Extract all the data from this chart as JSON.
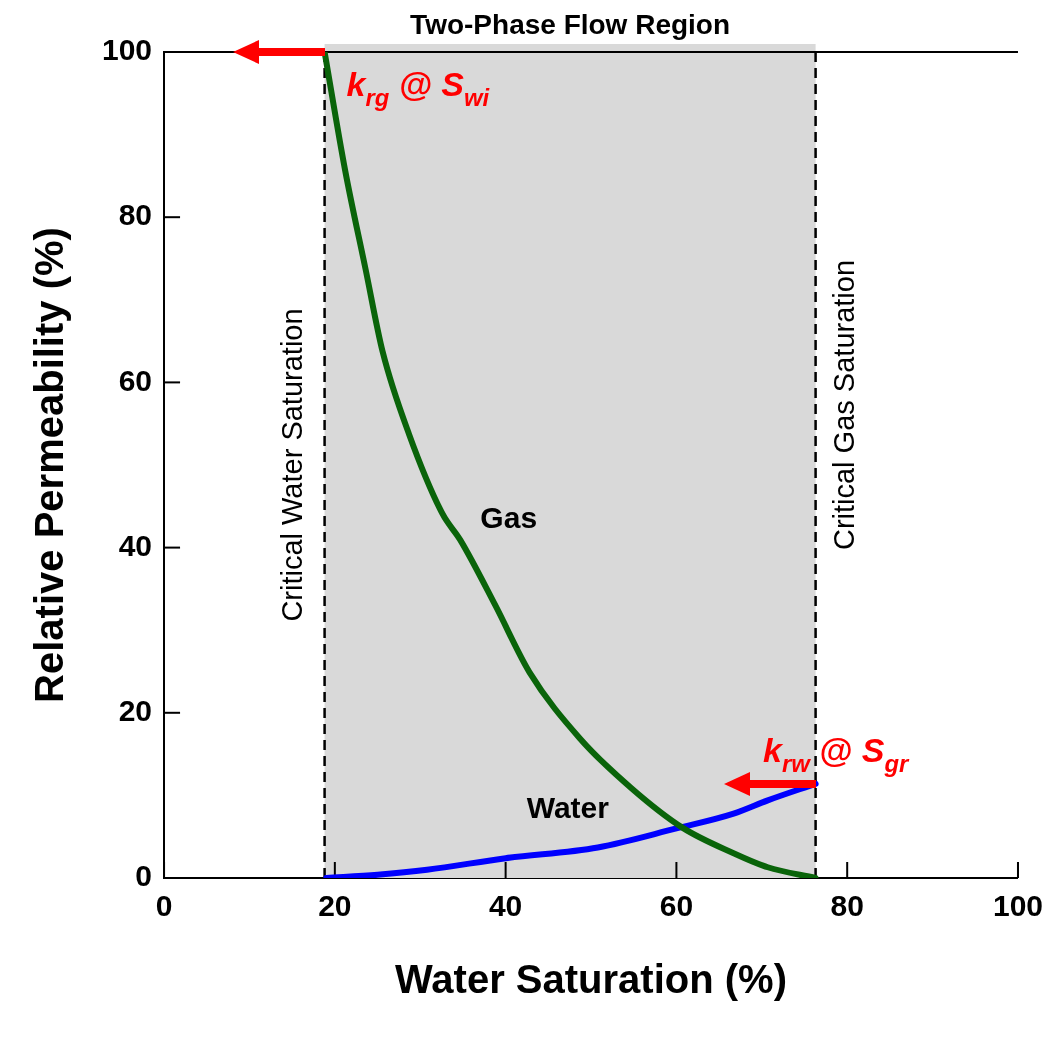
{
  "chart_data": {
    "type": "line",
    "xlabel": "Water Saturation (%)",
    "ylabel": "Relative Permeability (%)",
    "xlim": [
      0,
      100
    ],
    "xticks": [
      0,
      20,
      40,
      60,
      80,
      100
    ],
    "ylim": [
      0,
      100
    ],
    "yticks": [
      0,
      20,
      40,
      60,
      80,
      100
    ],
    "series": [
      {
        "name": "Gas",
        "color": "#0a640a",
        "x": [
          18.8,
          21.2,
          23.6,
          25.6,
          28.7,
          32.6,
          34.7,
          38.8,
          42.8,
          48.7,
          54.7,
          60.7,
          66.7,
          70.7,
          76.3
        ],
        "values": [
          100,
          85.7,
          73.7,
          63.7,
          53.7,
          44.1,
          40.9,
          33.0,
          24.9,
          16.9,
          10.9,
          6.1,
          3.0,
          1.3,
          0
        ]
      },
      {
        "name": "Water",
        "color": "#0000ff",
        "x": [
          19,
          25,
          30.8,
          40,
          50.8,
          60,
          66.7,
          70.7,
          76.3
        ],
        "values": [
          0,
          0.4,
          1.0,
          2.4,
          3.7,
          6.0,
          7.8,
          9.4,
          11.4
        ]
      }
    ],
    "bands": [
      {
        "axis": "x",
        "from": 18.8,
        "to": 76.3,
        "label": "Two-Phase Flow Region",
        "color": "#d9d9d9"
      }
    ],
    "ref_lines": [
      {
        "axis": "x",
        "value": 18.8,
        "label": "Critical Water Saturation",
        "line_style": "dashed",
        "color": "#000000"
      },
      {
        "axis": "x",
        "value": 76.3,
        "label": "Critical Gas Saturation",
        "line_style": "dashed",
        "color": "#000000"
      }
    ],
    "annotations": [
      {
        "text": "k$_{rg}$ @ S$_{wi}$",
        "x": 18.8,
        "y": 100
      },
      {
        "text": "k$_{rw}$ @ S$_{gr}$",
        "x": 76.3,
        "y": 11.4
      }
    ],
    "line_style": "solid",
    "marker": "none"
  }
}
